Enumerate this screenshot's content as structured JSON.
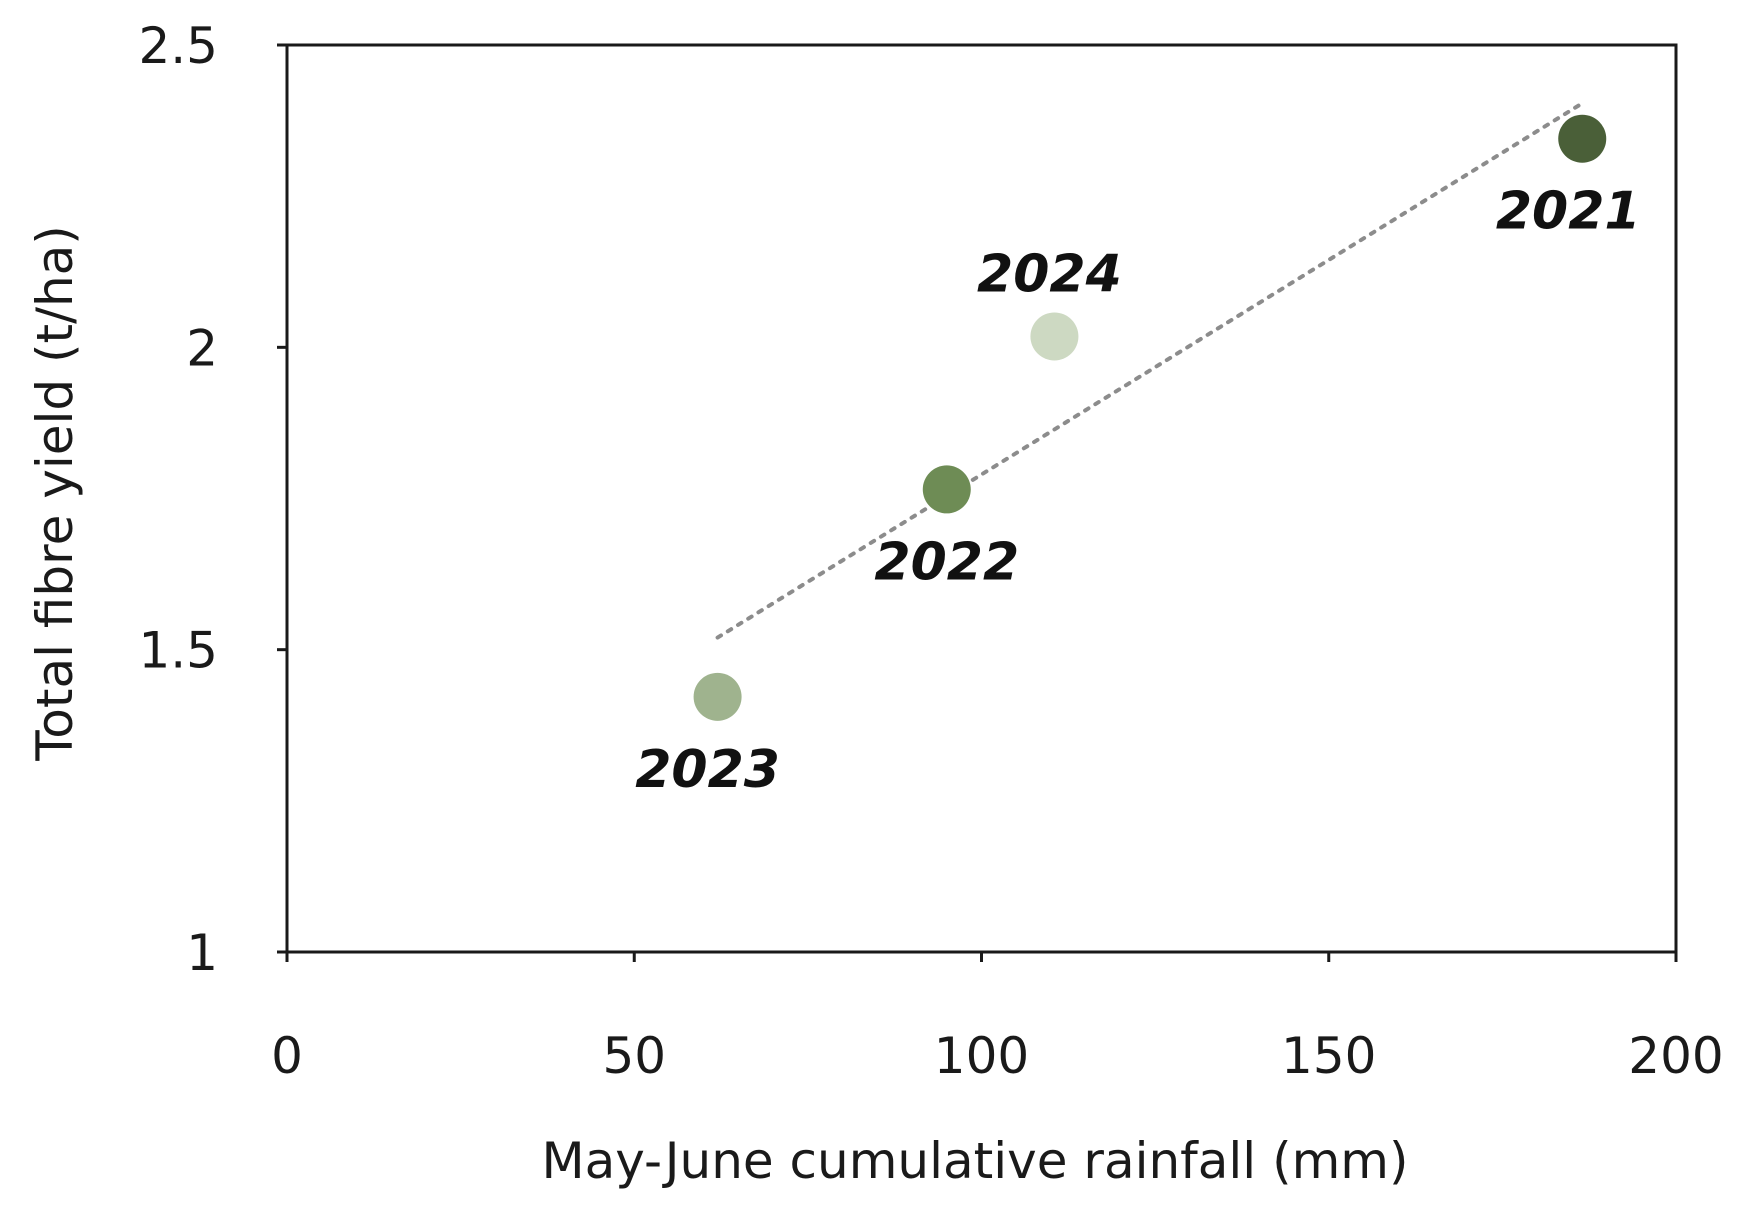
{
  "chart_data": {
    "type": "scatter",
    "xlabel": "May-June cumulative rainfall (mm)",
    "ylabel": "Total fibre yield (t/ha)",
    "xlim": [
      0,
      200
    ],
    "ylim": [
      1,
      2.5
    ],
    "xticks": [
      0,
      50,
      100,
      150,
      200
    ],
    "yticks": [
      1,
      1.5,
      2,
      2.5
    ],
    "xtick_labels": [
      "0",
      "50",
      "100",
      "150",
      "200"
    ],
    "ytick_labels": [
      "1",
      "1.5",
      "2",
      "2.5"
    ],
    "grid": false,
    "legend": "none",
    "points": [
      {
        "label": "2021",
        "x": 186.5,
        "y": 2.345,
        "color": "#4a5f38",
        "label_position": "below"
      },
      {
        "label": "2022",
        "x": 95,
        "y": 1.765,
        "color": "#6e8c55",
        "label_position": "below"
      },
      {
        "label": "2023",
        "x": 62,
        "y": 1.422,
        "color": "#9fb38e",
        "label_position": "below"
      },
      {
        "label": "2024",
        "x": 110.5,
        "y": 2.018,
        "color": "#cdd9c2",
        "label_position": "above"
      }
    ],
    "trendline": {
      "style": "dotted",
      "color": "#8c8c8c",
      "x": [
        62,
        186
      ],
      "y": [
        1.52,
        2.4
      ]
    }
  }
}
